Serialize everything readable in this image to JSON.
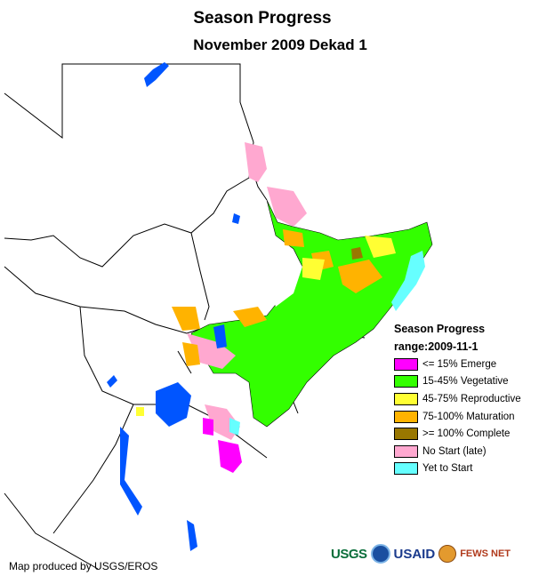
{
  "title": "Season Progress",
  "subtitle": "November 2009 Dekad 1",
  "legend": {
    "title": "Season Progress",
    "range": "range:2009-11-1",
    "items": [
      {
        "label": "<= 15% Emerge",
        "color": "#ff00ff"
      },
      {
        "label": "15-45% Vegetative",
        "color": "#33ff00"
      },
      {
        "label": "45-75% Reproductive",
        "color": "#ffff33"
      },
      {
        "label": "75-100% Maturation",
        "color": "#ffb300"
      },
      {
        "label": ">= 100% Complete",
        "color": "#997700"
      },
      {
        "label": "No Start (late)",
        "color": "#ffa8d0"
      },
      {
        "label": "Yet to Start",
        "color": "#66ffff"
      }
    ]
  },
  "credit": "Map produced by USGS/EROS",
  "logos": {
    "usgs": "USGS",
    "usaid": "USAID",
    "fews": "FEWS NET"
  },
  "colors": {
    "water": "#0055ff",
    "border": "#000000"
  }
}
